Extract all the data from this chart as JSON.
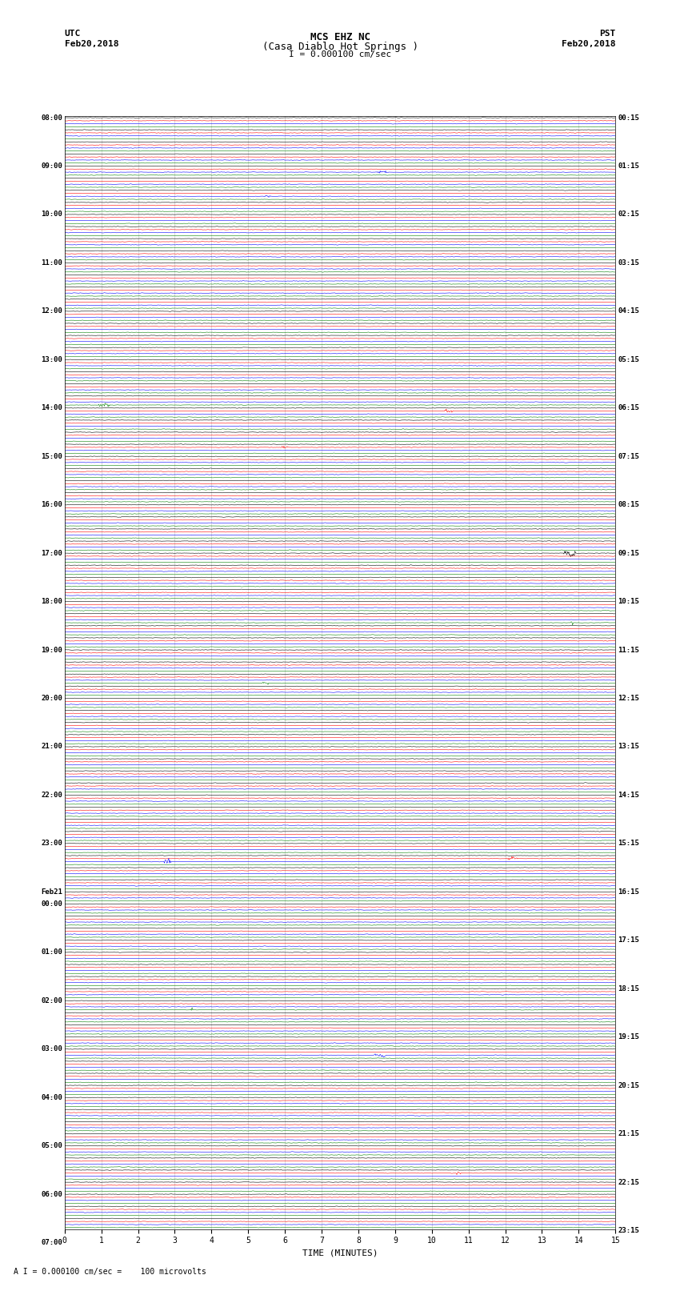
{
  "title_line1": "MCS EHZ NC",
  "title_line2": "(Casa Diablo Hot Springs )",
  "scale_label": "I = 0.000100 cm/sec",
  "footer_label": "A I = 0.000100 cm/sec =    100 microvolts",
  "utc_label": "UTC",
  "utc_date": "Feb20,2018",
  "pst_label": "PST",
  "pst_date": "Feb20,2018",
  "xlabel": "TIME (MINUTES)",
  "xlim": [
    0,
    15
  ],
  "xticks": [
    0,
    1,
    2,
    3,
    4,
    5,
    6,
    7,
    8,
    9,
    10,
    11,
    12,
    13,
    14,
    15
  ],
  "background_color": "#ffffff",
  "trace_colors": [
    "#000000",
    "#ff0000",
    "#0000ff",
    "#008000"
  ],
  "grid_color": "#aaaaaa",
  "left_times_utc": [
    "08:00",
    "",
    "",
    "",
    "09:00",
    "",
    "",
    "",
    "10:00",
    "",
    "",
    "",
    "11:00",
    "",
    "",
    "",
    "12:00",
    "",
    "",
    "",
    "13:00",
    "",
    "",
    "",
    "14:00",
    "",
    "",
    "",
    "15:00",
    "",
    "",
    "",
    "16:00",
    "",
    "",
    "",
    "17:00",
    "",
    "",
    "",
    "18:00",
    "",
    "",
    "",
    "19:00",
    "",
    "",
    "",
    "20:00",
    "",
    "",
    "",
    "21:00",
    "",
    "",
    "",
    "22:00",
    "",
    "",
    "",
    "23:00",
    "",
    "",
    "",
    "Feb21",
    "00:00",
    "",
    "",
    "",
    "01:00",
    "",
    "",
    "",
    "02:00",
    "",
    "",
    "",
    "03:00",
    "",
    "",
    "",
    "04:00",
    "",
    "",
    "",
    "05:00",
    "",
    "",
    "",
    "06:00",
    "",
    "",
    "",
    "07:00",
    "",
    ""
  ],
  "right_times_pst": [
    "00:15",
    "",
    "",
    "",
    "01:15",
    "",
    "",
    "",
    "02:15",
    "",
    "",
    "",
    "03:15",
    "",
    "",
    "",
    "04:15",
    "",
    "",
    "",
    "05:15",
    "",
    "",
    "",
    "06:15",
    "",
    "",
    "",
    "07:15",
    "",
    "",
    "",
    "08:15",
    "",
    "",
    "",
    "09:15",
    "",
    "",
    "",
    "10:15",
    "",
    "",
    "",
    "11:15",
    "",
    "",
    "",
    "12:15",
    "",
    "",
    "",
    "13:15",
    "",
    "",
    "",
    "14:15",
    "",
    "",
    "",
    "15:15",
    "",
    "",
    "",
    "16:15",
    "",
    "",
    "",
    "17:15",
    "",
    "",
    "",
    "18:15",
    "",
    "",
    "",
    "19:15",
    "",
    "",
    "",
    "20:15",
    "",
    "",
    "",
    "21:15",
    "",
    "",
    "",
    "22:15",
    "",
    "",
    "",
    "23:15",
    "",
    ""
  ],
  "n_rows": 92,
  "traces_per_row": 4,
  "noise_amp": 0.06,
  "figsize": [
    8.5,
    16.13
  ],
  "dpi": 100
}
